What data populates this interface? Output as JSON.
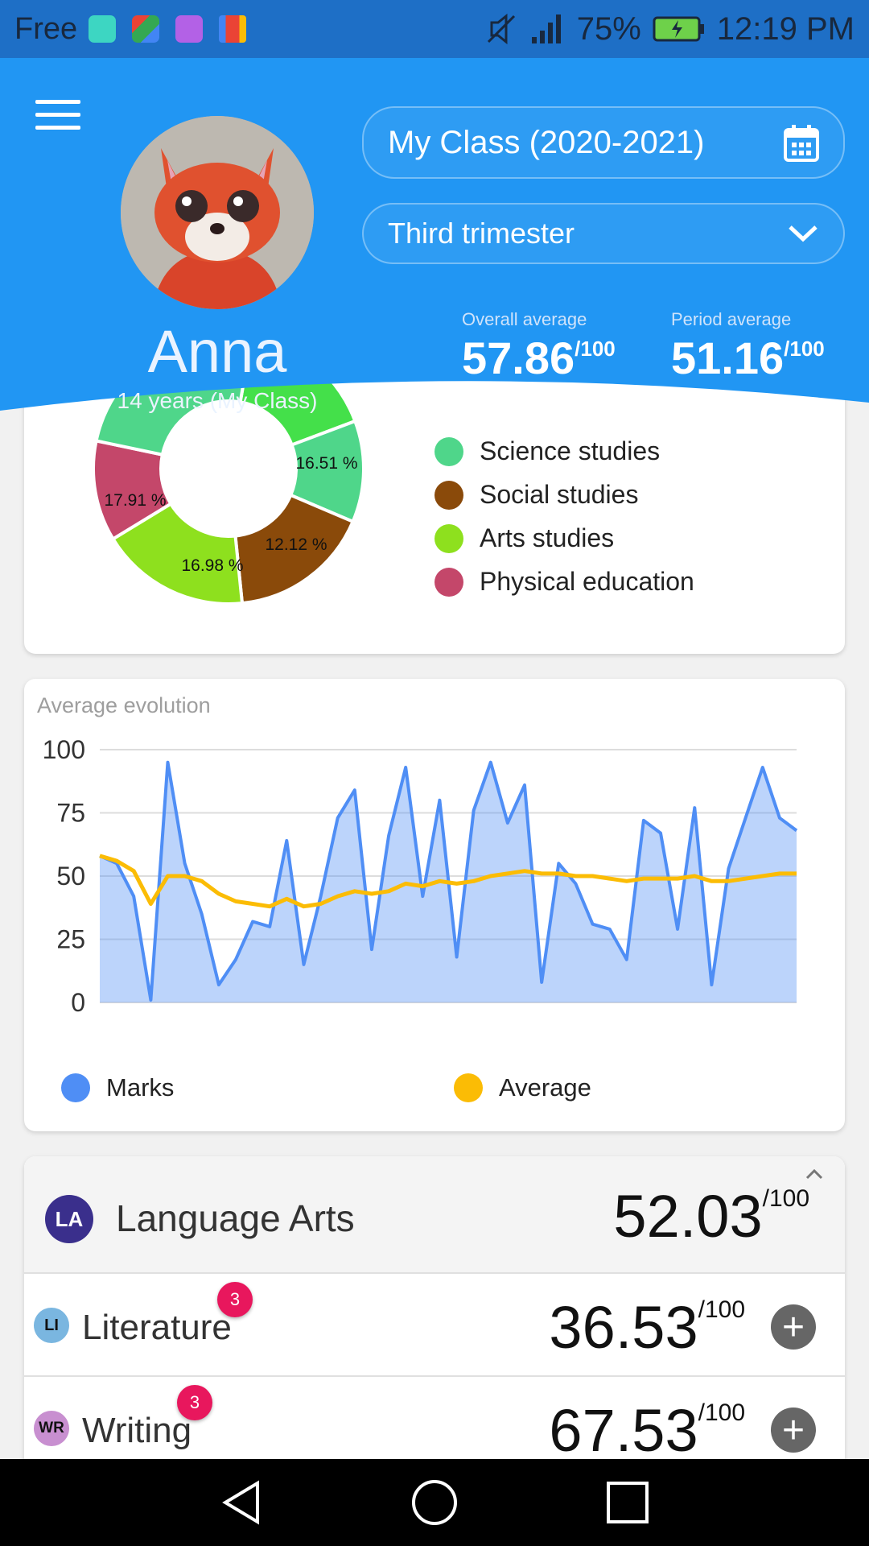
{
  "status_bar": {
    "carrier": "Free",
    "battery": "75%",
    "time": "12:19 PM",
    "app_icons": [
      "android-icon",
      "puzzle-icon",
      "gallery-icon",
      "gmail-icon"
    ]
  },
  "header": {
    "class_selector": "My Class (2020-2021)",
    "period_selector": "Third trimester",
    "student_name": "Anna",
    "student_info": "14 years (My Class)",
    "overall_label": "Overall average",
    "overall_value": "57.86",
    "period_label": "Period average",
    "period_value": "51.16",
    "max_suffix": "/100",
    "accent_color": "#2196f3"
  },
  "breakdown": {
    "legend": [
      {
        "label": "Science studies",
        "color": "#4fd68a"
      },
      {
        "label": "Social studies",
        "color": "#8a4a0a"
      },
      {
        "label": "Arts studies",
        "color": "#8ee01e"
      },
      {
        "label": "Physical education",
        "color": "#c4476a"
      }
    ],
    "slices": [
      {
        "label": "16.51 %",
        "value": 16.51,
        "color": "#44e04a"
      },
      {
        "label": "12.12 %",
        "value": 12.12,
        "color": "#4fd68a"
      },
      {
        "label": "16.98 %",
        "value": 16.98,
        "color": "#8a4a0a"
      },
      {
        "label": "17.91 %",
        "value": 17.91,
        "color": "#8ee01e"
      }
    ]
  },
  "evolution": {
    "title": "Average evolution",
    "legend_marks": "Marks",
    "legend_average": "Average",
    "marks_color": "#4f8ef5",
    "average_color": "#fbbc05"
  },
  "chart_data": {
    "type": "area",
    "title": "Average evolution",
    "ylim": [
      0,
      100
    ],
    "yticks": [
      100,
      75,
      50,
      25,
      0
    ],
    "grid": true,
    "legend_position": "bottom",
    "series": [
      {
        "name": "Marks",
        "values": [
          58,
          55,
          42,
          1,
          95,
          55,
          35,
          7,
          17,
          32,
          30,
          64,
          15,
          42,
          73,
          84,
          21,
          66,
          93,
          42,
          80,
          18,
          76,
          95,
          71,
          86,
          8,
          55,
          47,
          31,
          29,
          17,
          72,
          67,
          29,
          77,
          7,
          53,
          73,
          93,
          73,
          68
        ]
      },
      {
        "name": "Average",
        "values": [
          58,
          56,
          52,
          39,
          50,
          50,
          48,
          43,
          40,
          39,
          38,
          41,
          38,
          39,
          42,
          44,
          43,
          44,
          47,
          46,
          48,
          47,
          48,
          50,
          51,
          52,
          51,
          51,
          50,
          50,
          49,
          48,
          49,
          49,
          49,
          50,
          48,
          48,
          49,
          50,
          51,
          51
        ]
      }
    ]
  },
  "subjects": {
    "group": {
      "abbr": "LA",
      "name": "Language Arts",
      "score": "52.03",
      "max": "/100",
      "color": "#3a2f8c"
    },
    "items": [
      {
        "abbr": "LI",
        "name": "Literature",
        "score": "36.53",
        "max": "/100",
        "count": "3",
        "color": "#7ab6e0"
      },
      {
        "abbr": "WR",
        "name": "Writing",
        "score": "67.53",
        "max": "/100",
        "count": "3",
        "color": "#c88fd0"
      }
    ]
  }
}
